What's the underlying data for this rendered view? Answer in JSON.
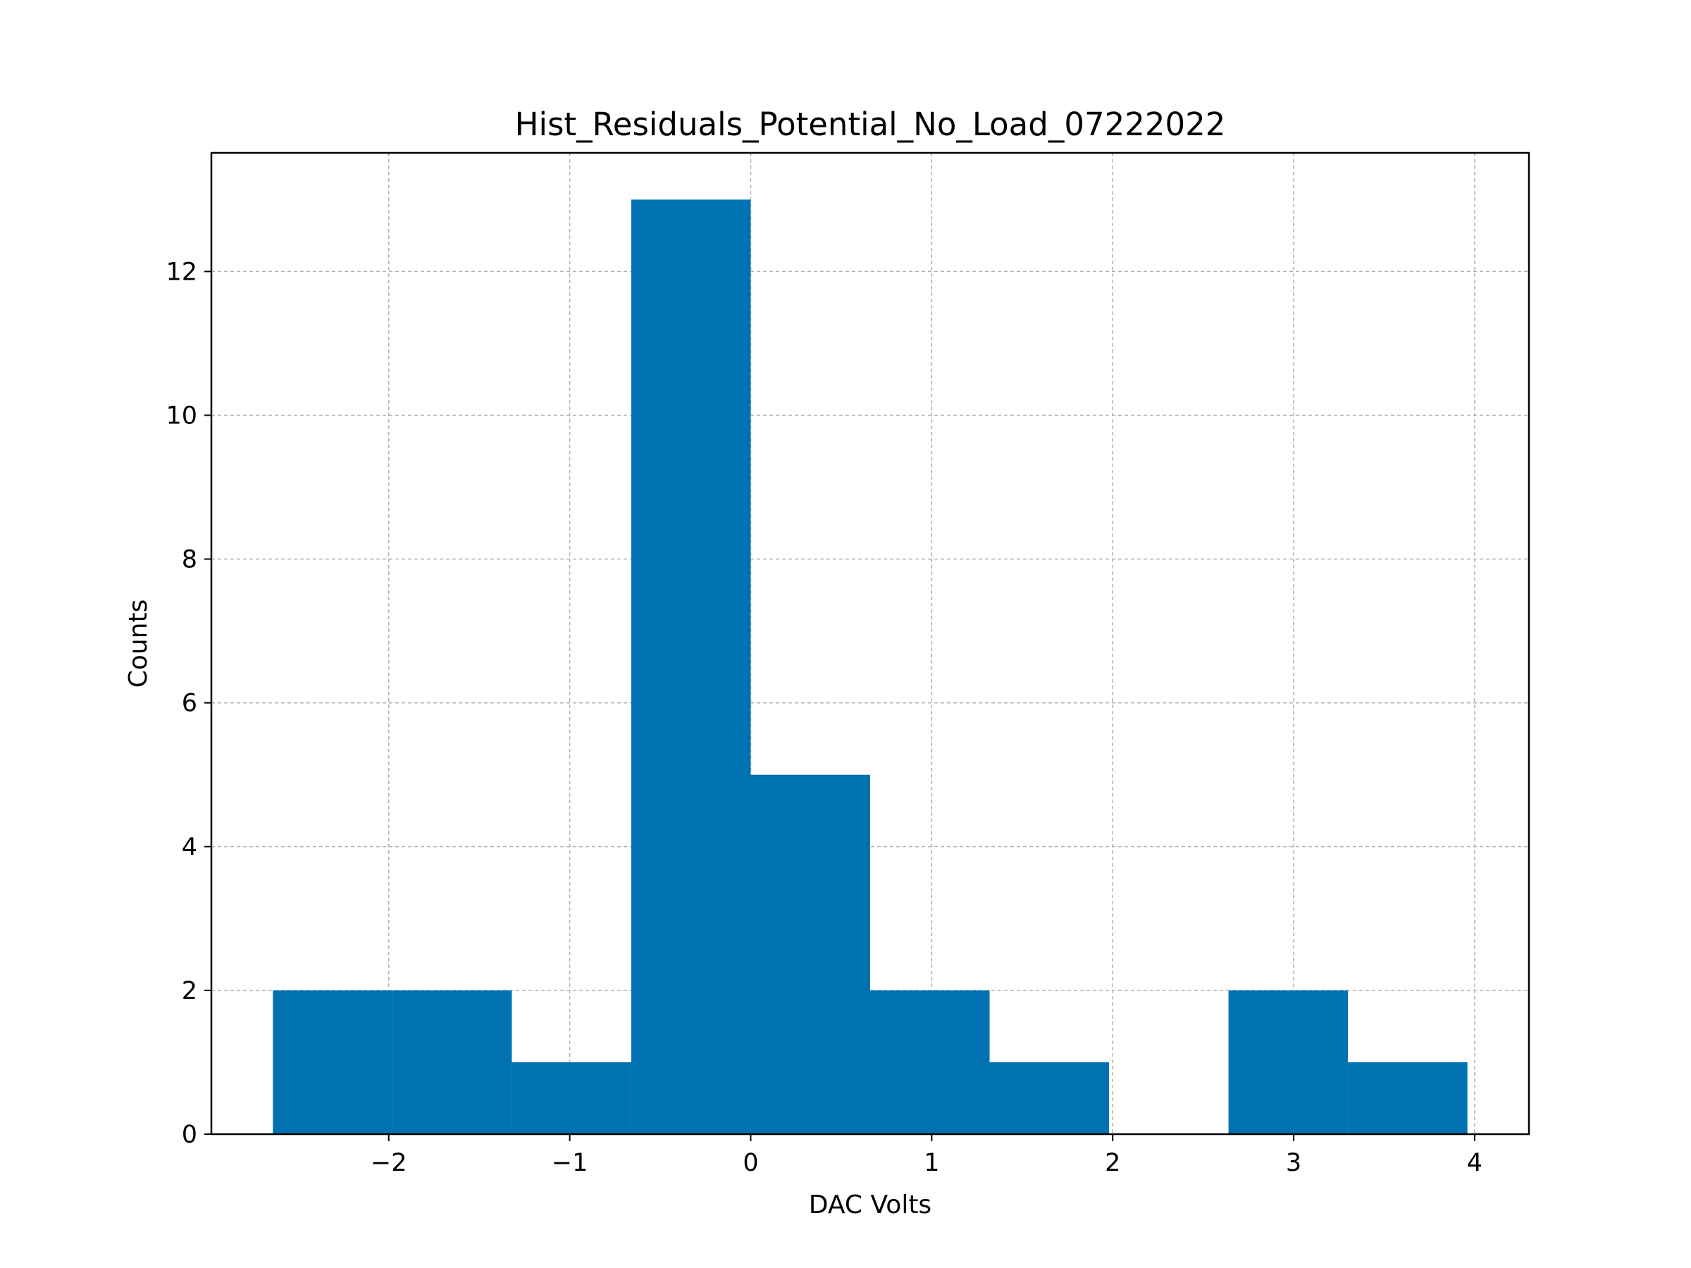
{
  "chart_data": {
    "type": "bar",
    "title": "Hist_Residuals_Potential_No_Load_07222022",
    "xlabel": "DAC Volts",
    "ylabel": "Counts",
    "xlim": [
      -2.98,
      4.3
    ],
    "ylim": [
      0,
      13.65
    ],
    "grid": true,
    "bar_color": "#0072b2",
    "bin_edges": [
      -2.64,
      -1.98,
      -1.32,
      -0.66,
      0.0,
      0.66,
      1.32,
      1.98,
      2.64,
      3.3,
      3.96
    ],
    "values": [
      2,
      2,
      1,
      13,
      5,
      2,
      1,
      0,
      2,
      1
    ],
    "xticks": [
      -2,
      -1,
      0,
      1,
      2,
      3,
      4
    ],
    "xtick_labels": [
      "−2",
      "−1",
      "0",
      "1",
      "2",
      "3",
      "4"
    ],
    "yticks": [
      0,
      2,
      4,
      6,
      8,
      10,
      12
    ],
    "ytick_labels": [
      "0",
      "2",
      "4",
      "6",
      "8",
      "10",
      "12"
    ]
  }
}
